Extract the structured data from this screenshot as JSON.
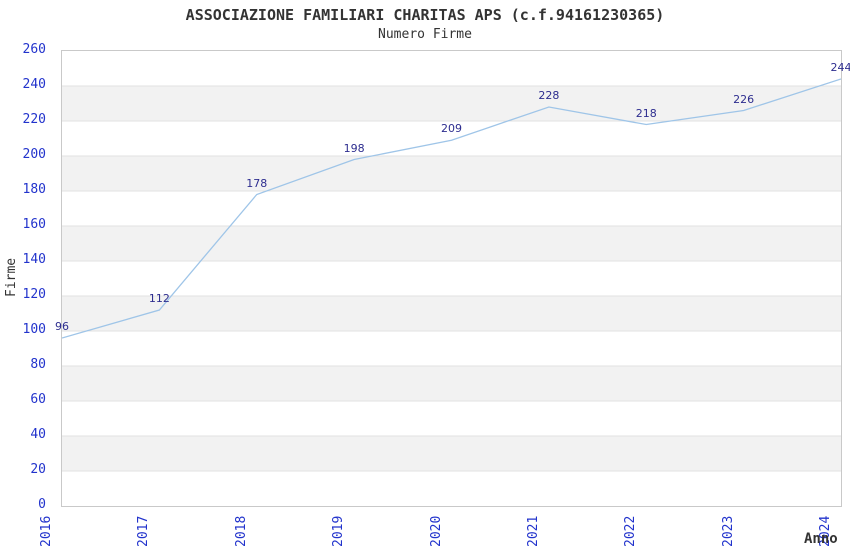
{
  "chart_data": {
    "type": "line",
    "title": "ASSOCIAZIONE FAMILIARI CHARITAS APS (c.f.94161230365)",
    "subtitle": "Numero Firme",
    "xlabel": "Anno",
    "ylabel": "Firme",
    "categories": [
      "2016",
      "2017",
      "2018",
      "2019",
      "2020",
      "2021",
      "2022",
      "2023",
      "2024"
    ],
    "values": [
      96,
      112,
      178,
      198,
      209,
      228,
      218,
      226,
      244
    ],
    "series_name": "Numero Firme",
    "ylim": [
      0,
      260
    ],
    "ytick_step": 20,
    "grid": "horizontal-only",
    "legend": "none",
    "banded_background": true,
    "data_labels_shown": true,
    "markers": "none"
  },
  "style": {
    "line_color": "#9fc5e8",
    "tick_label_color": "#2233cc",
    "data_label_color": "#2d2d8f",
    "title_color": "#333333",
    "axis_title_color": "#333333",
    "band_color": "#f2f2f2",
    "grid_color": "#e1e1e1",
    "border_color": "#c9c9c9",
    "background": "#ffffff"
  }
}
